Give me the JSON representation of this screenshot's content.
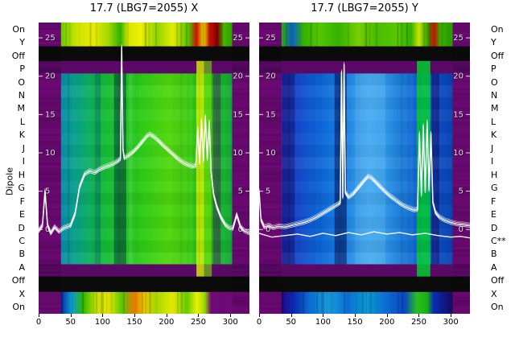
{
  "dipole_label": "Dipole",
  "rows_left": [
    "On",
    "Y",
    "Off",
    "P",
    "O",
    "N",
    "M",
    "L",
    "K",
    "J",
    "I",
    "H",
    "G",
    "F",
    "E",
    "D",
    "C",
    "B",
    "A",
    "Off",
    "X",
    "On"
  ],
  "rows_right": [
    "On",
    "Y",
    "Off",
    "P",
    "O",
    "N",
    "M",
    "L",
    "K",
    "J",
    "I",
    "H",
    "G",
    "F",
    "E",
    "D",
    "C**",
    "B",
    "A",
    "Off",
    "X",
    "On"
  ],
  "chart_data": [
    {
      "type": "heatmap",
      "panel": "X",
      "title": "17.7 (LBG7=2055) X",
      "x_range": [
        0,
        330
      ],
      "x_ticks": [
        0,
        50,
        100,
        150,
        200,
        250,
        300
      ],
      "y_ticks": [
        25,
        20,
        15,
        10,
        5,
        0
      ],
      "y_top_value": 27,
      "y_bottom_value": -11,
      "rows": [
        "On",
        "Y",
        "Off",
        "P",
        "O",
        "N",
        "M",
        "L",
        "K",
        "J",
        "I",
        "H",
        "G",
        "F",
        "E",
        "D",
        "C",
        "B",
        "A",
        "Off",
        "X",
        "On"
      ],
      "colors": {
        "margin": "#6e0a76",
        "purple_row": "#5a0a66",
        "black": "#0b0b0b",
        "trace": "#ffffff",
        "tick": "#dcdcdc"
      },
      "bands": {
        "bright_top": [
          0,
          0.082
        ],
        "black_top": [
          0.082,
          0.132
        ],
        "purple_top": [
          0.132,
          0.175
        ],
        "field": [
          0.175,
          0.83
        ],
        "purple_bottom": [
          0.83,
          0.872
        ],
        "black_bottom": [
          0.872,
          0.925
        ],
        "bright_bottom": [
          0.925,
          1.0
        ]
      },
      "margins_x": [
        [
          0,
          35
        ],
        [
          303,
          330
        ]
      ],
      "field_stops": [
        [
          35,
          "#0a8ca8"
        ],
        [
          55,
          "#0aa090"
        ],
        [
          80,
          "#0cb060"
        ],
        [
          105,
          "#16bc38"
        ],
        [
          130,
          "#1ec428"
        ],
        [
          155,
          "#2aca1a"
        ],
        [
          180,
          "#3ed214"
        ],
        [
          205,
          "#52d60e"
        ],
        [
          230,
          "#44d012"
        ],
        [
          255,
          "#2ec81c"
        ],
        [
          280,
          "#1cbc2a"
        ],
        [
          303,
          "#12a83a"
        ]
      ],
      "bright_top_stops": [
        [
          35,
          "#66cc00"
        ],
        [
          60,
          "#cce400"
        ],
        [
          85,
          "#e8ea00"
        ],
        [
          110,
          "#a0d800"
        ],
        [
          128,
          "#2eb000"
        ],
        [
          140,
          "#d8e600"
        ],
        [
          160,
          "#eef000"
        ],
        [
          185,
          "#90d400"
        ],
        [
          210,
          "#e4ec00"
        ],
        [
          235,
          "#52c400"
        ],
        [
          247,
          "#cc1000"
        ],
        [
          258,
          "#e8d400"
        ],
        [
          268,
          "#cc1000"
        ],
        [
          280,
          "#7a0000"
        ],
        [
          290,
          "#44b800"
        ],
        [
          303,
          "#2ea000"
        ]
      ],
      "bright_bottom_stops": [
        [
          35,
          "#0a2ca6"
        ],
        [
          52,
          "#0a9cd2"
        ],
        [
          70,
          "#2eb800"
        ],
        [
          90,
          "#c4de00"
        ],
        [
          110,
          "#e8ea00"
        ],
        [
          130,
          "#58c800"
        ],
        [
          150,
          "#e87a00"
        ],
        [
          165,
          "#e8c400"
        ],
        [
          185,
          "#a6d800"
        ],
        [
          210,
          "#e6ea00"
        ],
        [
          232,
          "#64ca00"
        ],
        [
          248,
          "#eaf200"
        ],
        [
          260,
          "#96d600"
        ],
        [
          270,
          "#6e0a76"
        ],
        [
          303,
          "#6e0a76"
        ]
      ],
      "stripes": [
        {
          "x0": 118,
          "x1": 137,
          "color": "rgba(0,45,65,0.5)",
          "span": "field"
        },
        {
          "x0": 88,
          "x1": 97,
          "color": "rgba(0,70,95,0.3)",
          "span": "field"
        },
        {
          "x0": 247,
          "x1": 259,
          "color": "rgba(215,240,0,0.8)",
          "span": "block"
        },
        {
          "x0": 259,
          "x1": 271,
          "color": "rgba(115,225,0,0.62)",
          "span": "block"
        },
        {
          "x0": 273,
          "x1": 285,
          "color": "rgba(70,0,95,0.42)",
          "span": "field"
        },
        {
          "x0": 141,
          "x1": 147,
          "color": "rgba(255,255,255,0.10)",
          "span": "field"
        }
      ],
      "series": [
        {
          "name": "beam-profile-x",
          "bundle": true,
          "points": [
            [
              0,
              -0.2
            ],
            [
              6,
              0.5
            ],
            [
              10,
              5
            ],
            [
              14,
              0.5
            ],
            [
              19,
              -0.5
            ],
            [
              25,
              0.3
            ],
            [
              32,
              -0.3
            ],
            [
              40,
              0.2
            ],
            [
              50,
              0.5
            ],
            [
              57,
              2
            ],
            [
              64,
              5.5
            ],
            [
              72,
              7.2
            ],
            [
              80,
              7.6
            ],
            [
              88,
              7.4
            ],
            [
              95,
              7.8
            ],
            [
              103,
              8.1
            ],
            [
              110,
              8.3
            ],
            [
              118,
              8.6
            ],
            [
              124,
              8.9
            ],
            [
              128,
              9.2
            ],
            [
              130,
              23.8
            ],
            [
              132,
              10.5
            ],
            [
              134,
              9.3
            ],
            [
              140,
              9.6
            ],
            [
              148,
              10.1
            ],
            [
              155,
              10.7
            ],
            [
              163,
              11.5
            ],
            [
              170,
              12.2
            ],
            [
              174,
              12.4
            ],
            [
              180,
              12.1
            ],
            [
              187,
              11.6
            ],
            [
              194,
              11.0
            ],
            [
              202,
              10.4
            ],
            [
              210,
              9.8
            ],
            [
              218,
              9.2
            ],
            [
              226,
              8.7
            ],
            [
              234,
              8.4
            ],
            [
              241,
              8.2
            ],
            [
              246,
              8.3
            ],
            [
              249,
              13.2
            ],
            [
              252,
              8.7
            ],
            [
              255,
              14.2
            ],
            [
              258,
              9.0
            ],
            [
              261,
              14.7
            ],
            [
              264,
              9.2
            ],
            [
              267,
              14.0
            ],
            [
              270,
              7.5
            ],
            [
              274,
              4.5
            ],
            [
              279,
              2.9
            ],
            [
              285,
              1.6
            ],
            [
              292,
              0.6
            ],
            [
              298,
              0.2
            ],
            [
              304,
              0.1
            ],
            [
              310,
              1.9
            ],
            [
              316,
              0.3
            ],
            [
              322,
              -0.2
            ],
            [
              330,
              -0.5
            ]
          ]
        }
      ]
    },
    {
      "type": "heatmap",
      "panel": "Y",
      "title": "17.7 (LBG7=2055) Y",
      "x_range": [
        0,
        330
      ],
      "x_ticks": [
        0,
        50,
        100,
        150,
        200,
        250,
        300
      ],
      "y_ticks": [
        25,
        20,
        15,
        10,
        5,
        0
      ],
      "y_top_value": 27,
      "y_bottom_value": -11,
      "rows": [
        "On",
        "Y",
        "Off",
        "P",
        "O",
        "N",
        "M",
        "L",
        "K",
        "J",
        "I",
        "H",
        "G",
        "F",
        "E",
        "D",
        "C",
        "B",
        "A",
        "Off",
        "X",
        "On"
      ],
      "colors": {
        "margin": "#6e0a76",
        "purple_row": "#5a0a66",
        "black": "#0b0b0b",
        "trace": "#ffffff",
        "tick": "#dcdcdc"
      },
      "bands": {
        "bright_top": [
          0,
          0.082
        ],
        "black_top": [
          0.082,
          0.132
        ],
        "purple_top": [
          0.132,
          0.175
        ],
        "field": [
          0.175,
          0.83
        ],
        "purple_bottom": [
          0.83,
          0.872
        ],
        "black_bottom": [
          0.872,
          0.925
        ],
        "bright_bottom": [
          0.925,
          1.0
        ]
      },
      "margins_x": [
        [
          0,
          35
        ],
        [
          303,
          330
        ]
      ],
      "field_stops": [
        [
          35,
          "#2230bc"
        ],
        [
          60,
          "#1648cc"
        ],
        [
          90,
          "#0c62d6"
        ],
        [
          120,
          "#1478e0"
        ],
        [
          150,
          "#2a92e8"
        ],
        [
          172,
          "#3aa2ee"
        ],
        [
          195,
          "#2f98e8"
        ],
        [
          225,
          "#1b7cdc"
        ],
        [
          255,
          "#1062d2"
        ],
        [
          280,
          "#0c50c4"
        ],
        [
          303,
          "#0a42b2"
        ]
      ],
      "bright_top_stops": [
        [
          35,
          "#30ac00"
        ],
        [
          52,
          "#0a5ec8"
        ],
        [
          70,
          "#34b200"
        ],
        [
          95,
          "#54c600"
        ],
        [
          125,
          "#34b200"
        ],
        [
          155,
          "#76ce00"
        ],
        [
          185,
          "#46be00"
        ],
        [
          215,
          "#58c800"
        ],
        [
          238,
          "#34b200"
        ],
        [
          250,
          "#c8e400"
        ],
        [
          262,
          "#34b200"
        ],
        [
          274,
          "#c41000"
        ],
        [
          284,
          "#34b200"
        ],
        [
          303,
          "#289800"
        ]
      ],
      "bright_bottom_stops": [
        [
          35,
          "#26088c"
        ],
        [
          55,
          "#0a2cb2"
        ],
        [
          80,
          "#0a6ed2"
        ],
        [
          108,
          "#16a0e2"
        ],
        [
          138,
          "#0a6ed2"
        ],
        [
          168,
          "#0a9ad2"
        ],
        [
          198,
          "#0a6ed2"
        ],
        [
          228,
          "#0a46c2"
        ],
        [
          247,
          "#28c020"
        ],
        [
          263,
          "#16b210"
        ],
        [
          273,
          "#0a2cb2"
        ],
        [
          303,
          "#160a60"
        ]
      ],
      "stripes": [
        {
          "x0": 118,
          "x1": 137,
          "color": "rgba(0,0,70,0.5)",
          "span": "field"
        },
        {
          "x0": 36,
          "x1": 56,
          "color": "rgba(8,0,70,0.35)",
          "span": "field"
        },
        {
          "x0": 150,
          "x1": 198,
          "color": "rgba(150,220,255,0.18)",
          "span": "field"
        },
        {
          "x0": 247,
          "x1": 268,
          "color": "rgba(0,205,45,0.85)",
          "span": "block"
        },
        {
          "x0": 270,
          "x1": 282,
          "color": "rgba(25,0,85,0.45)",
          "span": "field"
        }
      ],
      "series": [
        {
          "name": "beam-profile-y",
          "bundle": true,
          "points": [
            [
              0,
              5
            ],
            [
              3,
              1.2
            ],
            [
              8,
              0.3
            ],
            [
              15,
              0.5
            ],
            [
              22,
              0.2
            ],
            [
              30,
              0.4
            ],
            [
              40,
              0.3
            ],
            [
              50,
              0.5
            ],
            [
              60,
              0.7
            ],
            [
              70,
              0.9
            ],
            [
              80,
              1.2
            ],
            [
              90,
              1.6
            ],
            [
              100,
              2.1
            ],
            [
              110,
              2.6
            ],
            [
              118,
              3.0
            ],
            [
              124,
              3.3
            ],
            [
              127,
              3.5
            ],
            [
              129,
              20.5
            ],
            [
              131,
              4.2
            ],
            [
              133,
              21.5
            ],
            [
              135,
              4.8
            ],
            [
              140,
              4.2
            ],
            [
              147,
              4.6
            ],
            [
              154,
              5.3
            ],
            [
              161,
              6.0
            ],
            [
              167,
              6.6
            ],
            [
              171,
              6.9
            ],
            [
              176,
              6.7
            ],
            [
              182,
              6.2
            ],
            [
              189,
              5.6
            ],
            [
              196,
              5.0
            ],
            [
              204,
              4.4
            ],
            [
              212,
              3.9
            ],
            [
              220,
              3.4
            ],
            [
              228,
              3.0
            ],
            [
              236,
              2.7
            ],
            [
              243,
              2.5
            ],
            [
              248,
              2.6
            ],
            [
              251,
              12.5
            ],
            [
              254,
              4.5
            ],
            [
              257,
              13.5
            ],
            [
              260,
              5.0
            ],
            [
              263,
              14.0
            ],
            [
              266,
              5.2
            ],
            [
              269,
              12.5
            ],
            [
              272,
              3.5
            ],
            [
              276,
              2.2
            ],
            [
              282,
              1.6
            ],
            [
              290,
              1.2
            ],
            [
              300,
              0.9
            ],
            [
              310,
              0.7
            ],
            [
              320,
              0.6
            ],
            [
              330,
              0.5
            ]
          ]
        },
        {
          "name": "reference-trace-y",
          "bundle": false,
          "points": [
            [
              0,
              -0.5
            ],
            [
              20,
              -1.0
            ],
            [
              40,
              -0.8
            ],
            [
              60,
              -0.6
            ],
            [
              80,
              -0.9
            ],
            [
              100,
              -0.5
            ],
            [
              120,
              -0.8
            ],
            [
              140,
              -0.4
            ],
            [
              160,
              -0.7
            ],
            [
              180,
              -0.3
            ],
            [
              200,
              -0.6
            ],
            [
              220,
              -0.4
            ],
            [
              240,
              -0.7
            ],
            [
              260,
              -0.5
            ],
            [
              280,
              -0.8
            ],
            [
              300,
              -1.0
            ],
            [
              315,
              -0.9
            ],
            [
              330,
              -1.1
            ]
          ]
        }
      ]
    }
  ]
}
